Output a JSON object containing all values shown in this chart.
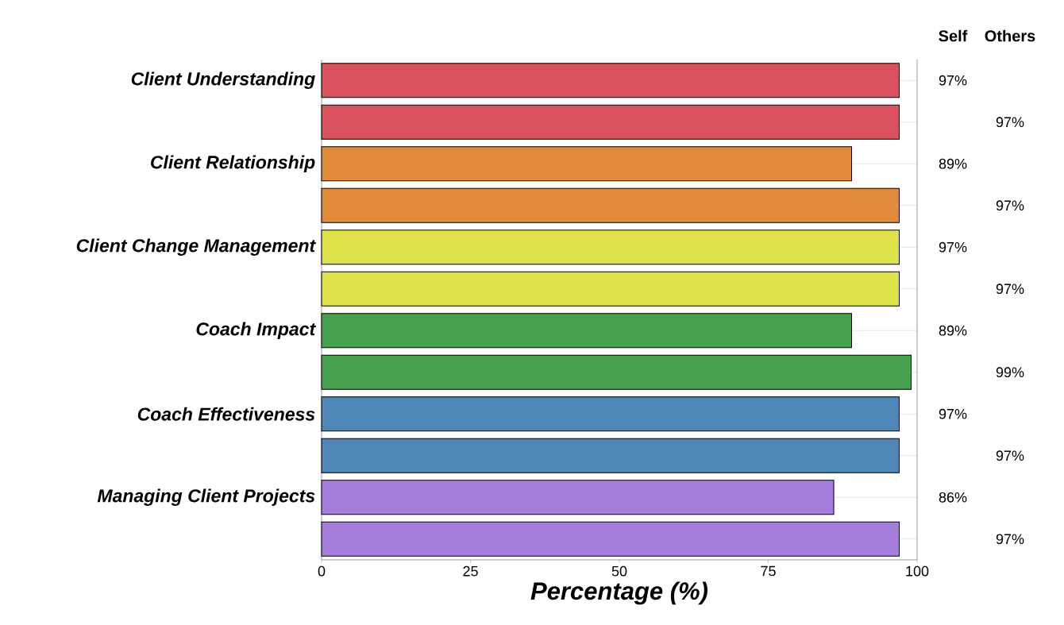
{
  "chart_data": {
    "type": "bar",
    "orientation": "horizontal",
    "categories": [
      "Client Understanding",
      "Client Relationship",
      "Client Change Management",
      "Coach Impact",
      "Coach Effectiveness",
      "Managing Client Projects"
    ],
    "series": [
      {
        "name": "Self",
        "colors": [
          "#d9505f",
          "#e08a3a",
          "#dde24a",
          "#45a050",
          "#4f86b8",
          "#a57edb"
        ],
        "values": [
          97,
          89,
          97,
          89,
          97,
          86
        ],
        "value_labels": [
          "97%",
          "89%",
          "97%",
          "89%",
          "97%",
          "86%"
        ]
      },
      {
        "name": "Others",
        "colors": [
          "#d9505f",
          "#e08a3a",
          "#dde24a",
          "#45a050",
          "#4f86b8",
          "#a57edb"
        ],
        "values": [
          97,
          97,
          97,
          99,
          97,
          97
        ],
        "value_labels": [
          "97%",
          "97%",
          "97%",
          "99%",
          "97%",
          "97%"
        ]
      }
    ],
    "xlabel": "Percentage (%)",
    "xlim": [
      0,
      100
    ],
    "xticks": [
      0,
      25,
      50,
      75,
      100
    ],
    "grid": "y"
  }
}
